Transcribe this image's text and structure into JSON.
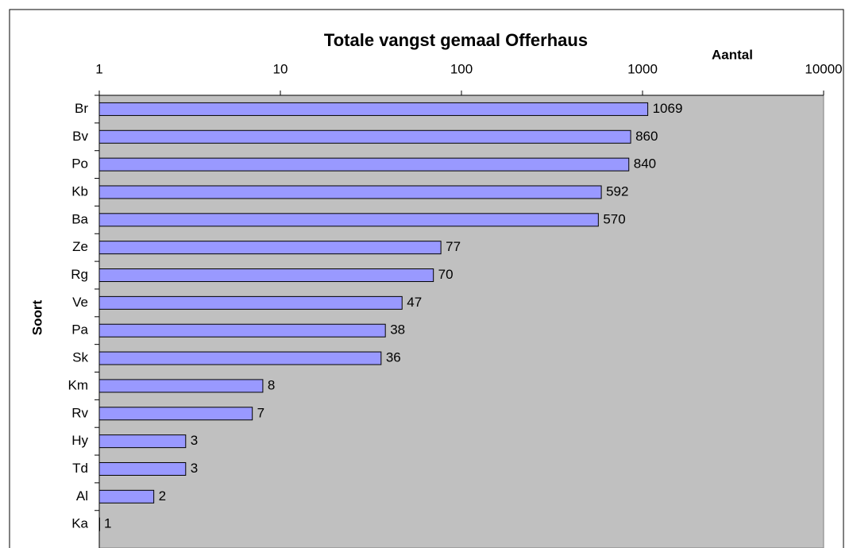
{
  "chart_data": {
    "type": "bar",
    "orientation": "horizontal",
    "title": "Totale vangst gemaal Offerhaus",
    "xlabel": "Aantal",
    "ylabel": "Soort",
    "categories": [
      "Br",
      "Bv",
      "Po",
      "Kb",
      "Ba",
      "Ze",
      "Rg",
      "Ve",
      "Pa",
      "Sk",
      "Km",
      "Rv",
      "Hy",
      "Td",
      "Al",
      "Ka"
    ],
    "values": [
      1069,
      860,
      840,
      592,
      570,
      77,
      70,
      47,
      38,
      36,
      8,
      7,
      3,
      3,
      2,
      1
    ],
    "color": "#9999ff",
    "xlim": [
      1,
      10000
    ],
    "xticks": [
      1,
      10,
      100,
      1000,
      10000
    ],
    "xscale": "log"
  }
}
